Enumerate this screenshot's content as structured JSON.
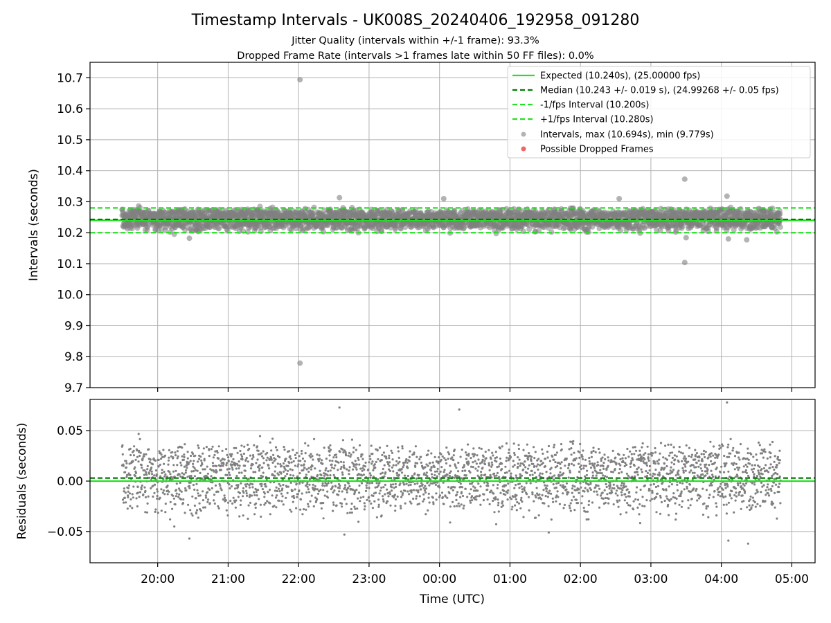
{
  "figure": {
    "title": "Timestamp Intervals - UK008S_20240406_192958_091280",
    "subtitle_1": "Jitter Quality (intervals within +/-1 frame): 93.3%",
    "subtitle_2": "Dropped Frame Rate (intervals >1 frames late within 50 FF files): 0.0%"
  },
  "colors": {
    "expected": "#22e022",
    "median": "#007a00",
    "band": "#22e022",
    "points": "#808080",
    "dropped": "#ee5555",
    "grid": "#b0b0b0",
    "axis": "#000000"
  },
  "chart_data": [
    {
      "type": "scatter",
      "ylabel": "Intervals (seconds)",
      "ylim": [
        9.7,
        10.75
      ],
      "yticks": [
        9.7,
        9.8,
        9.9,
        10.0,
        10.1,
        10.2,
        10.3,
        10.4,
        10.5,
        10.6,
        10.7
      ],
      "ytick_labels": [
        "9.7",
        "9.8",
        "9.9",
        "10.0",
        "10.1",
        "10.2",
        "10.3",
        "10.4",
        "10.5",
        "10.6",
        "10.7"
      ],
      "xlim_hours": [
        -0.96,
        9.33
      ],
      "x_start_hours": -0.505,
      "x_end_hours": 8.84,
      "grid": true,
      "legend_position": "top-right",
      "lines": [
        {
          "name": "Expected (10.240s), (25.00000 fps)",
          "y": 10.24,
          "style": "solid",
          "color_key": "expected"
        },
        {
          "name": "Median (10.243 +/- 0.019 s), (24.99268 +/- 0.05 fps)",
          "y": 10.243,
          "style": "dashed",
          "color_key": "median"
        },
        {
          "name": "-1/fps Interval (10.200s)",
          "y": 10.2,
          "style": "dashed",
          "color_key": "band"
        },
        {
          "name": "+1/fps Interval (10.280s)",
          "y": 10.28,
          "style": "dashed",
          "color_key": "band"
        }
      ],
      "series": [
        {
          "name": "Intervals, max (10.694s), min (9.779s)",
          "marker": "circle",
          "color_key": "points"
        },
        {
          "name": "Possible Dropped Frames",
          "marker": "circle",
          "color_key": "dropped",
          "values": []
        }
      ],
      "outliers": [
        {
          "x_hours": 2.02,
          "y": 10.694
        },
        {
          "x_hours": 2.02,
          "y": 9.779
        },
        {
          "x_hours": 7.48,
          "y": 10.373
        },
        {
          "x_hours": 7.48,
          "y": 10.104
        },
        {
          "x_hours": 8.08,
          "y": 10.318
        },
        {
          "x_hours": 6.55,
          "y": 10.31
        },
        {
          "x_hours": 4.06,
          "y": 10.31
        },
        {
          "x_hours": 2.58,
          "y": 10.313
        },
        {
          "x_hours": 0.45,
          "y": 10.182
        },
        {
          "x_hours": 8.36,
          "y": 10.177
        },
        {
          "x_hours": 8.1,
          "y": 10.18
        },
        {
          "x_hours": 7.5,
          "y": 10.184
        }
      ]
    },
    {
      "type": "scatter",
      "ylabel": "Residuals (seconds)",
      "xlabel": "Time (UTC)",
      "ylim": [
        -0.081,
        0.081
      ],
      "yticks": [
        -0.05,
        0.0,
        0.05
      ],
      "ytick_labels": [
        "−0.05",
        "0.00",
        "0.05"
      ],
      "xlim_hours": [
        -0.96,
        9.33
      ],
      "xticks_hours": [
        0,
        1,
        2,
        3,
        4,
        5,
        6,
        7,
        8,
        9
      ],
      "xtick_labels": [
        "20:00",
        "21:00",
        "22:00",
        "23:00",
        "00:00",
        "01:00",
        "02:00",
        "03:00",
        "04:00",
        "05:00"
      ],
      "grid": true,
      "lines": [
        {
          "y": 0.0,
          "style": "solid",
          "color_key": "expected"
        },
        {
          "y": 0.003,
          "style": "dashed",
          "color_key": "median"
        }
      ],
      "extremes": [
        {
          "x_hours": 8.08,
          "y": 0.078
        },
        {
          "x_hours": 2.58,
          "y": 0.073
        },
        {
          "x_hours": 4.28,
          "y": 0.071
        },
        {
          "x_hours": 8.38,
          "y": -0.062
        },
        {
          "x_hours": 8.1,
          "y": -0.059
        },
        {
          "x_hours": 0.45,
          "y": -0.057
        },
        {
          "x_hours": 2.65,
          "y": -0.053
        },
        {
          "x_hours": 5.55,
          "y": -0.051
        }
      ]
    }
  ]
}
